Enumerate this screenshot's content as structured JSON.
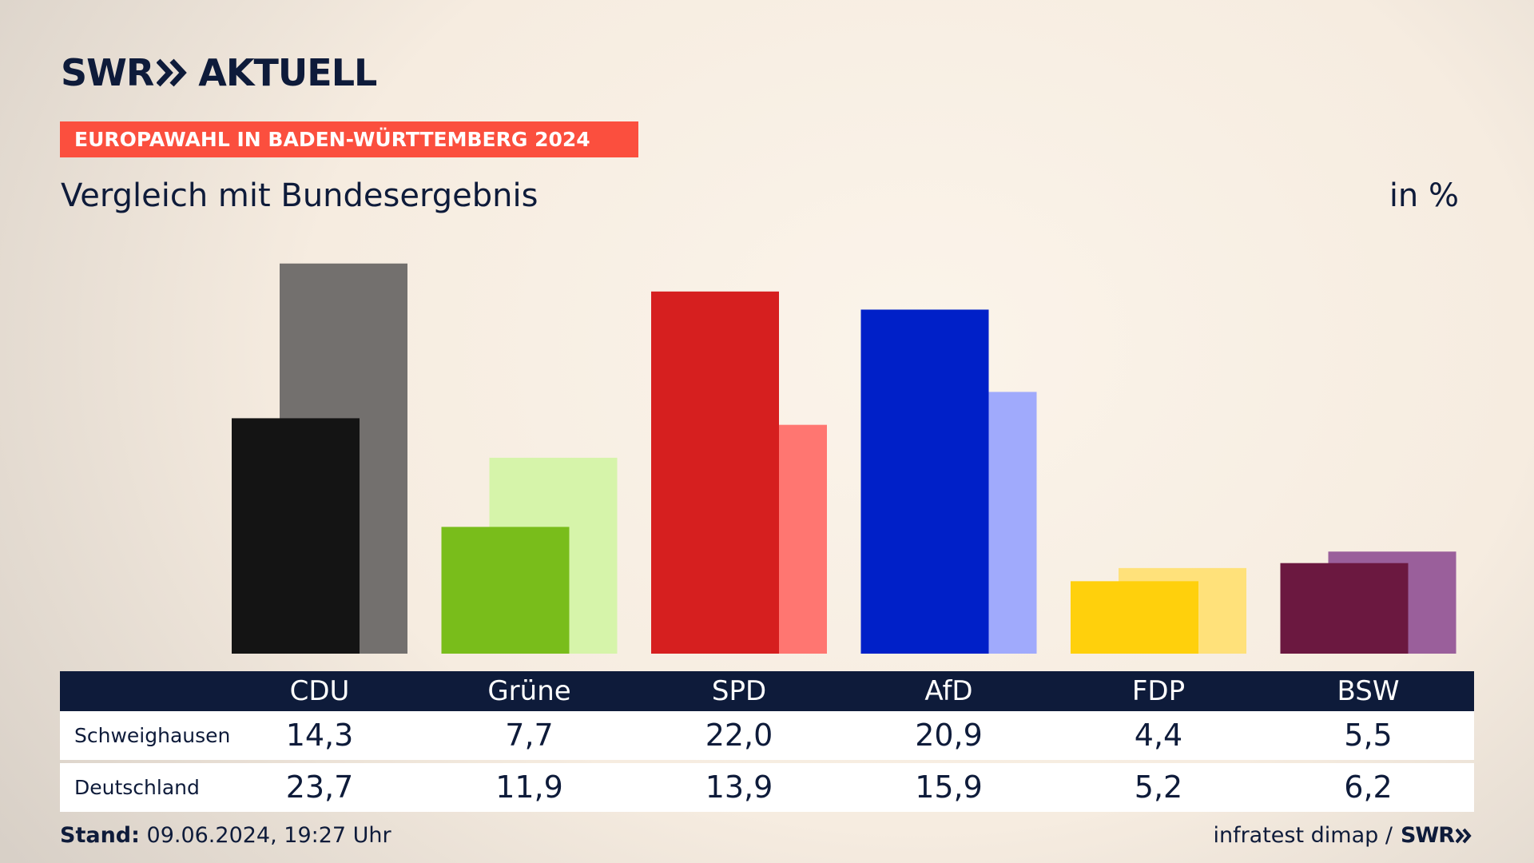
{
  "header": {
    "logo_brand": "SWR",
    "logo_title": "AKTUELL",
    "tag": "EUROPAWAHL IN BADEN-WÜRTTEMBERG 2024",
    "subtitle": "Vergleich mit Bundesergebnis",
    "unit": "in %"
  },
  "colors": {
    "navy": "#0e1b3a",
    "tag_red": "#fb4f3e"
  },
  "chart_data": {
    "type": "bar",
    "title": "Vergleich mit Bundesergebnis",
    "unit": "in %",
    "categories": [
      "CDU",
      "Grüne",
      "SPD",
      "AfD",
      "FDP",
      "BSW"
    ],
    "series": [
      {
        "name": "Schweighausen",
        "values": [
          14.3,
          7.7,
          22.0,
          20.9,
          4.4,
          5.5
        ],
        "colors": [
          "#141414",
          "#79bd1b",
          "#d61f1f",
          "#0020c8",
          "#ffd00c",
          "#6b1840"
        ]
      },
      {
        "name": "Deutschland",
        "values": [
          23.7,
          11.9,
          13.9,
          15.9,
          5.2,
          6.2
        ],
        "colors": [
          "#73706e",
          "#d6f4aa",
          "#ff7671",
          "#a0aafc",
          "#ffe17a",
          "#9a5f9b"
        ]
      }
    ]
  },
  "table": {
    "rows": [
      {
        "label": "Schweighausen",
        "values": [
          "14,3",
          "7,7",
          "22,0",
          "20,9",
          "4,4",
          "5,5"
        ]
      },
      {
        "label": "Deutschland",
        "values": [
          "23,7",
          "11,9",
          "13,9",
          "15,9",
          "5,2",
          "6,2"
        ]
      }
    ]
  },
  "footer": {
    "stand_label": "Stand:",
    "stand_value": "09.06.2024, 19:27 Uhr",
    "source": "infratest dimap /",
    "source_brand": "SWR"
  }
}
